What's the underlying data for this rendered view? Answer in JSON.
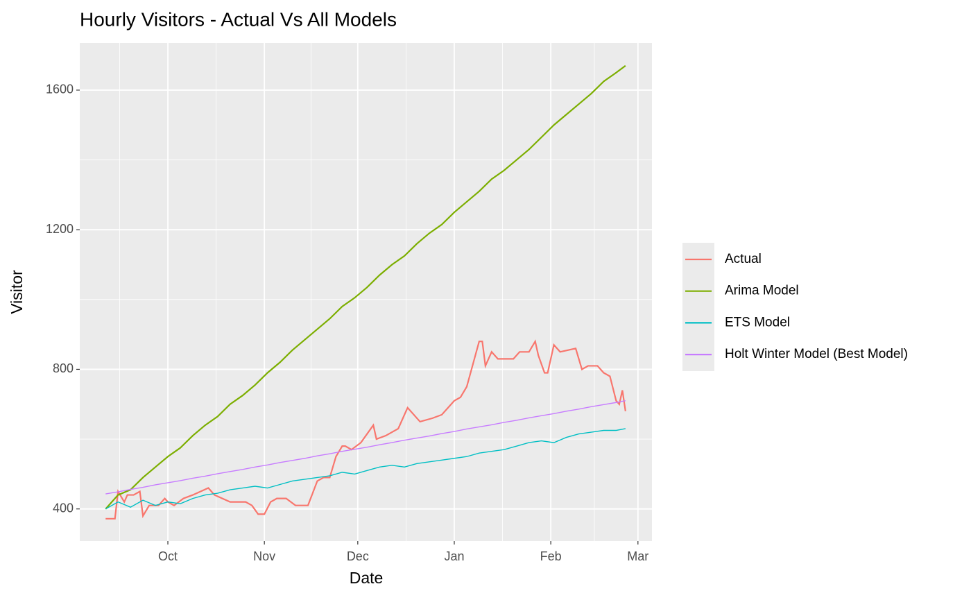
{
  "chart_data": {
    "type": "line",
    "title": "Hourly Visitors - Actual Vs All Models",
    "x_label": "Date",
    "y_label": "Visitor",
    "x": [
      10,
      14,
      18,
      22,
      26,
      30,
      34,
      38,
      42,
      46,
      50,
      54,
      58,
      62,
      66,
      70,
      74,
      78,
      82,
      86,
      90,
      94,
      98,
      102,
      106,
      110,
      114,
      118,
      122,
      126,
      130,
      134,
      138,
      142,
      146,
      150,
      154,
      158,
      162,
      166,
      170,
      174,
      177
    ],
    "series": [
      {
        "name": "Actual",
        "color": "#F8766D",
        "x": [
          10,
          13,
          14,
          16,
          17,
          19,
          21,
          22,
          24,
          27,
          29,
          30,
          32,
          35,
          38,
          43,
          45,
          50,
          55,
          57,
          59,
          61,
          63,
          65,
          68,
          71,
          75,
          78,
          80,
          82,
          84,
          86,
          87,
          89,
          92,
          96,
          97,
          100,
          104,
          107,
          111,
          115,
          118,
          122,
          124,
          126,
          130,
          131,
          132,
          134,
          136,
          141,
          143,
          146,
          148,
          149,
          151,
          152,
          154,
          156,
          161,
          163,
          165,
          168,
          170,
          172,
          174,
          175,
          176,
          177
        ],
        "values": [
          372,
          372,
          450,
          420,
          440,
          440,
          450,
          380,
          410,
          410,
          430,
          420,
          410,
          430,
          440,
          460,
          440,
          420,
          420,
          410,
          385,
          385,
          420,
          430,
          430,
          410,
          410,
          480,
          490,
          490,
          550,
          580,
          580,
          570,
          590,
          640,
          600,
          610,
          630,
          690,
          650,
          660,
          670,
          710,
          720,
          750,
          880,
          880,
          810,
          850,
          830,
          830,
          850,
          850,
          880,
          840,
          790,
          790,
          870,
          850,
          860,
          800,
          810,
          810,
          790,
          780,
          710,
          700,
          740,
          680
        ]
      },
      {
        "name": "Arima Model",
        "color": "#7CAE00",
        "values": [
          400,
          440,
          455,
          490,
          520,
          550,
          575,
          610,
          640,
          665,
          700,
          725,
          755,
          790,
          820,
          855,
          885,
          915,
          945,
          980,
          1005,
          1035,
          1070,
          1100,
          1125,
          1160,
          1190,
          1215,
          1250,
          1280,
          1310,
          1345,
          1370,
          1400,
          1430,
          1465,
          1500,
          1530,
          1560,
          1590,
          1625,
          1650,
          1670
        ]
      },
      {
        "name": "ETS Model",
        "color": "#00BFC4",
        "values": [
          400,
          420,
          405,
          425,
          410,
          420,
          415,
          430,
          440,
          445,
          455,
          460,
          465,
          460,
          470,
          480,
          485,
          490,
          495,
          505,
          500,
          510,
          520,
          525,
          520,
          530,
          535,
          540,
          545,
          550,
          560,
          565,
          570,
          580,
          590,
          595,
          590,
          605,
          615,
          620,
          625,
          625,
          630
        ]
      },
      {
        "name": "Holt Winter Model (Best Model)",
        "color": "#C77CFF",
        "values": [
          443,
          449,
          456,
          462,
          469,
          475,
          481,
          488,
          494,
          501,
          507,
          513,
          520,
          526,
          533,
          539,
          545,
          552,
          558,
          565,
          571,
          577,
          584,
          590,
          597,
          603,
          609,
          616,
          622,
          629,
          635,
          641,
          648,
          654,
          661,
          667,
          673,
          680,
          686,
          693,
          699,
          705,
          710
        ]
      }
    ],
    "xlim": [
      1.7,
      185.5
    ],
    "xticks": [
      {
        "value": 30,
        "label": "Oct"
      },
      {
        "value": 61,
        "label": "Nov"
      },
      {
        "value": 91,
        "label": "Dec"
      },
      {
        "value": 122,
        "label": "Jan"
      },
      {
        "value": 153,
        "label": "Feb"
      },
      {
        "value": 181,
        "label": "Mar"
      }
    ],
    "ylim": [
      308,
      1735
    ],
    "yticks": [
      400,
      800,
      1200,
      1600
    ],
    "grid": true
  }
}
